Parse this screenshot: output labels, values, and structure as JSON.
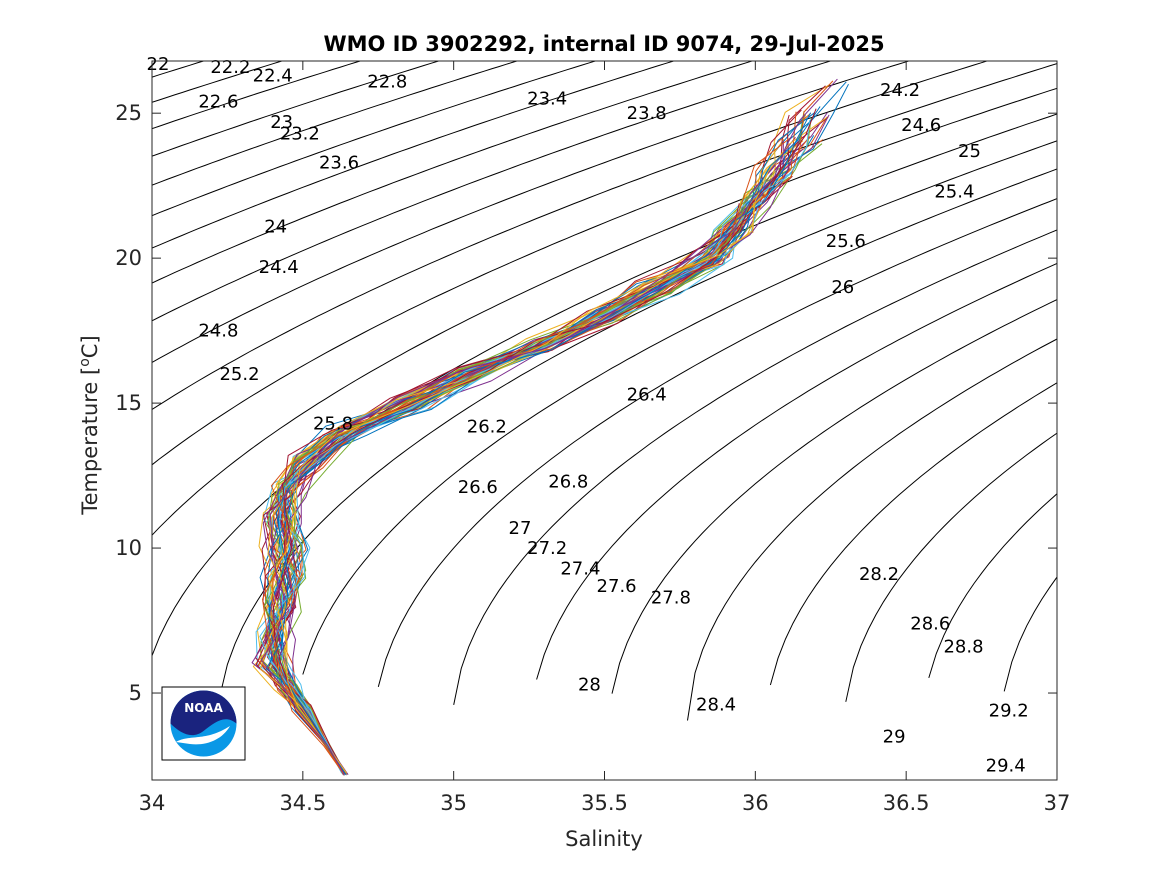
{
  "chart_data": {
    "type": "line",
    "title": "WMO ID 3902292, internal ID 9074, 29-Jul-2025",
    "xlabel": "Salinity",
    "ylabel": "Temperature [",
    "ylabel_sup": "o",
    "ylabel_tail": "C]",
    "xlim": [
      34,
      37
    ],
    "ylim": [
      2,
      26.8
    ],
    "xticks": [
      34,
      34.5,
      35,
      35.5,
      36,
      36.5,
      37
    ],
    "xtick_labels": [
      "34",
      "34.5",
      "35",
      "35.5",
      "36",
      "36.5",
      "37"
    ],
    "yticks": [
      5,
      10,
      15,
      20,
      25
    ],
    "ytick_labels": [
      "5",
      "10",
      "15",
      "20",
      "25"
    ],
    "grid": false,
    "legend": "none",
    "isopycnal_step": 0.2,
    "isopycnal_range": [
      22,
      29.4
    ],
    "isopycnal_labels": [
      {
        "text": "22",
        "s": 34.02,
        "t": 26.7
      },
      {
        "text": "22.2",
        "s": 34.26,
        "t": 26.6
      },
      {
        "text": "22.4",
        "s": 34.4,
        "t": 26.3
      },
      {
        "text": "22.6",
        "s": 34.22,
        "t": 25.4
      },
      {
        "text": "22.8",
        "s": 34.78,
        "t": 26.1
      },
      {
        "text": "23",
        "s": 34.43,
        "t": 24.7
      },
      {
        "text": "23.2",
        "s": 34.49,
        "t": 24.3
      },
      {
        "text": "23.4",
        "s": 35.31,
        "t": 25.5
      },
      {
        "text": "23.6",
        "s": 34.62,
        "t": 23.3
      },
      {
        "text": "23.8",
        "s": 35.64,
        "t": 25.0
      },
      {
        "text": "24",
        "s": 34.41,
        "t": 21.1
      },
      {
        "text": "24.2",
        "s": 36.48,
        "t": 25.8
      },
      {
        "text": "24.4",
        "s": 34.42,
        "t": 19.7
      },
      {
        "text": "24.6",
        "s": 36.55,
        "t": 24.6
      },
      {
        "text": "24.8",
        "s": 34.22,
        "t": 17.5
      },
      {
        "text": "25",
        "s": 36.71,
        "t": 23.7
      },
      {
        "text": "25.2",
        "s": 34.29,
        "t": 16.0
      },
      {
        "text": "25.4",
        "s": 36.66,
        "t": 22.3
      },
      {
        "text": "25.6",
        "s": 36.3,
        "t": 20.6
      },
      {
        "text": "25.8",
        "s": 34.6,
        "t": 14.3
      },
      {
        "text": "26",
        "s": 36.29,
        "t": 19.0
      },
      {
        "text": "26.2",
        "s": 35.11,
        "t": 14.2
      },
      {
        "text": "26.4",
        "s": 35.64,
        "t": 15.3
      },
      {
        "text": "26.6",
        "s": 35.08,
        "t": 12.1
      },
      {
        "text": "26.8",
        "s": 35.38,
        "t": 12.3
      },
      {
        "text": "27",
        "s": 35.22,
        "t": 10.7
      },
      {
        "text": "27.2",
        "s": 35.31,
        "t": 10.0
      },
      {
        "text": "27.4",
        "s": 35.42,
        "t": 9.3
      },
      {
        "text": "27.6",
        "s": 35.54,
        "t": 8.7
      },
      {
        "text": "27.8",
        "s": 35.72,
        "t": 8.3
      },
      {
        "text": "28",
        "s": 35.45,
        "t": 5.3
      },
      {
        "text": "28.2",
        "s": 36.41,
        "t": 9.1
      },
      {
        "text": "28.4",
        "s": 35.87,
        "t": 4.6
      },
      {
        "text": "28.6",
        "s": 36.58,
        "t": 7.4
      },
      {
        "text": "28.8",
        "s": 36.69,
        "t": 6.6
      },
      {
        "text": "29",
        "s": 36.46,
        "t": 3.5
      },
      {
        "text": "29.2",
        "s": 36.84,
        "t": 4.4
      },
      {
        "text": "29.4",
        "s": 36.83,
        "t": 2.5
      }
    ],
    "profile_mean": [
      {
        "s": 34.64,
        "t": 2.2
      },
      {
        "s": 34.58,
        "t": 3.2
      },
      {
        "s": 34.5,
        "t": 4.5
      },
      {
        "s": 34.45,
        "t": 5.2
      },
      {
        "s": 34.4,
        "t": 6.0
      },
      {
        "s": 34.41,
        "t": 7.0
      },
      {
        "s": 34.43,
        "t": 8.0
      },
      {
        "s": 34.44,
        "t": 9.0
      },
      {
        "s": 34.44,
        "t": 10.0
      },
      {
        "s": 34.43,
        "t": 11.0
      },
      {
        "s": 34.45,
        "t": 12.0
      },
      {
        "s": 34.52,
        "t": 13.0
      },
      {
        "s": 34.65,
        "t": 14.0
      },
      {
        "s": 34.85,
        "t": 15.0
      },
      {
        "s": 35.05,
        "t": 16.0
      },
      {
        "s": 35.3,
        "t": 17.0
      },
      {
        "s": 35.5,
        "t": 18.0
      },
      {
        "s": 35.68,
        "t": 19.0
      },
      {
        "s": 35.85,
        "t": 20.0
      },
      {
        "s": 35.93,
        "t": 21.0
      },
      {
        "s": 36.0,
        "t": 22.0
      },
      {
        "s": 36.08,
        "t": 23.0
      },
      {
        "s": 36.14,
        "t": 24.0
      },
      {
        "s": 36.19,
        "t": 25.0
      },
      {
        "s": 36.28,
        "t": 26.0
      }
    ],
    "profile_count": 60,
    "series_colors": [
      "#0072BD",
      "#D95319",
      "#EDB120",
      "#7E2F8E",
      "#77AC30",
      "#4DBEEE",
      "#A2142F"
    ]
  },
  "logo": {
    "text": "NOAA"
  }
}
